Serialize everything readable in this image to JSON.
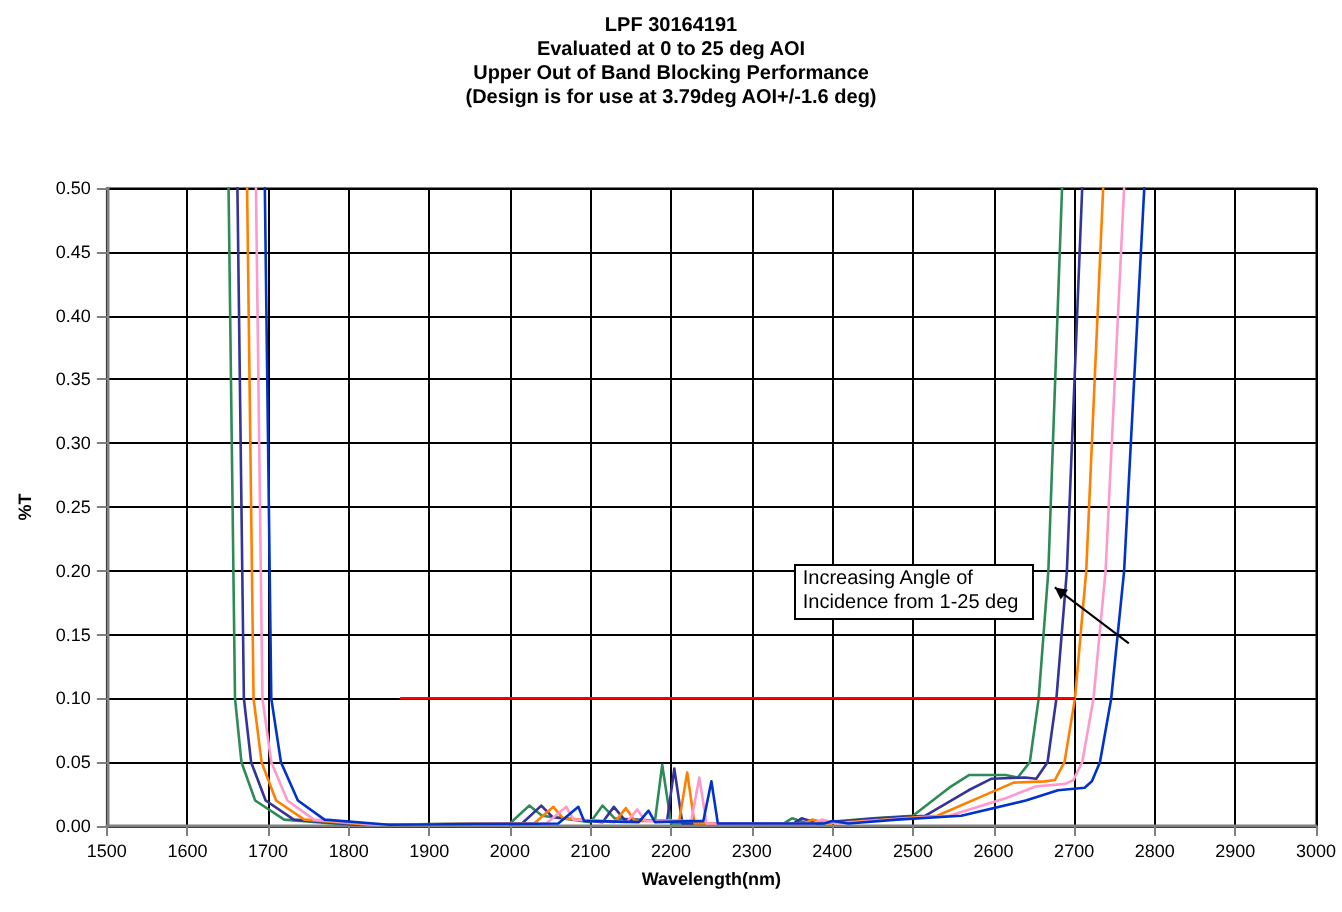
{
  "chart_data": {
    "type": "line",
    "title": "LPF 30164191",
    "subtitle": "Evaluated at 0 to 25 deg AOI\nUpper Out of Band Blocking Performance\n(Design is for use at 3.79deg AOI+/-1.6 deg)",
    "xlabel": "Wavelength(nm)",
    "ylabel": "%T",
    "xlim": [
      1500,
      3000
    ],
    "xticks": [
      1500,
      1600,
      1700,
      1800,
      1900,
      2000,
      2100,
      2200,
      2300,
      2400,
      2500,
      2600,
      2700,
      2800,
      2900,
      3000
    ],
    "ylim": [
      0,
      0.5
    ],
    "yticks": [
      {
        "value": 0,
        "label": "0.00"
      },
      {
        "value": 0.05,
        "label": "0.05"
      },
      {
        "value": 0.1,
        "label": "0.10"
      },
      {
        "value": 0.15,
        "label": "0.15"
      },
      {
        "value": 0.2,
        "label": "0.20"
      },
      {
        "value": 0.25,
        "label": "0.25"
      },
      {
        "value": 0.3,
        "label": "0.30"
      },
      {
        "value": 0.35,
        "label": "0.35"
      },
      {
        "value": 0.4,
        "label": "0.40"
      },
      {
        "value": 0.45,
        "label": "0.45"
      },
      {
        "value": 0.5,
        "label": "0.50"
      }
    ],
    "grid": true,
    "marker": "none",
    "line_style": "solid",
    "series": [
      {
        "color": "#2e8b57",
        "x": [
          1651,
          1659,
          1667,
          1684,
          1720,
          1800,
          2000,
          2024,
          2040,
          2100,
          2115,
          2130,
          2180,
          2189,
          2200,
          2340,
          2350,
          2370,
          2450,
          2500,
          2545,
          2570,
          2615,
          2630,
          2645,
          2656,
          2668,
          2685
        ],
        "values": [
          0.5,
          0.1,
          0.05,
          0.02,
          0.005,
          0.001,
          0.002,
          0.016,
          0.008,
          0.003,
          0.016,
          0.006,
          0.004,
          0.048,
          0.002,
          0.002,
          0.006,
          0.002,
          0.006,
          0.008,
          0.03,
          0.04,
          0.04,
          0.038,
          0.05,
          0.1,
          0.2,
          0.5
        ]
      },
      {
        "color": "#333399",
        "x": [
          1662,
          1670,
          1679,
          1697,
          1732,
          1812,
          2015,
          2039,
          2053,
          2115,
          2129,
          2142,
          2195,
          2204,
          2214,
          2352,
          2362,
          2382,
          2457,
          2515,
          2569,
          2597,
          2639,
          2653,
          2667,
          2678,
          2691,
          2710
        ],
        "values": [
          0.5,
          0.1,
          0.05,
          0.02,
          0.005,
          0.001,
          0.002,
          0.016,
          0.007,
          0.003,
          0.015,
          0.005,
          0.004,
          0.045,
          0.002,
          0.002,
          0.006,
          0.002,
          0.006,
          0.008,
          0.028,
          0.037,
          0.038,
          0.037,
          0.05,
          0.1,
          0.2,
          0.5
        ]
      },
      {
        "color": "#ff8000",
        "x": [
          1674,
          1682,
          1692,
          1710,
          1745,
          1825,
          2030,
          2054,
          2066,
          2130,
          2144,
          2155,
          2210,
          2220,
          2229,
          2365,
          2375,
          2395,
          2465,
          2530,
          2592,
          2625,
          2664,
          2676,
          2688,
          2701,
          2715,
          2736
        ],
        "values": [
          0.5,
          0.1,
          0.05,
          0.02,
          0.005,
          0.001,
          0.002,
          0.015,
          0.006,
          0.003,
          0.014,
          0.004,
          0.004,
          0.042,
          0.002,
          0.002,
          0.005,
          0.002,
          0.005,
          0.008,
          0.025,
          0.034,
          0.035,
          0.036,
          0.05,
          0.1,
          0.2,
          0.5
        ]
      },
      {
        "color": "#ff99cc",
        "x": [
          1685,
          1693,
          1704,
          1724,
          1757,
          1837,
          2045,
          2070,
          2079,
          2145,
          2158,
          2168,
          2225,
          2235,
          2244,
          2377,
          2387,
          2407,
          2472,
          2545,
          2616,
          2652,
          2689,
          2699,
          2710,
          2724,
          2739,
          2762
        ],
        "values": [
          0.5,
          0.1,
          0.05,
          0.02,
          0.005,
          0.001,
          0.002,
          0.015,
          0.005,
          0.003,
          0.013,
          0.004,
          0.004,
          0.038,
          0.002,
          0.002,
          0.005,
          0.002,
          0.005,
          0.008,
          0.022,
          0.031,
          0.033,
          0.036,
          0.05,
          0.1,
          0.2,
          0.5
        ]
      },
      {
        "color": "#0033cc",
        "x": [
          1696,
          1704,
          1716,
          1737,
          1770,
          1850,
          2060,
          2085,
          2092,
          2160,
          2172,
          2180,
          2240,
          2250,
          2258,
          2390,
          2400,
          2420,
          2480,
          2560,
          2640,
          2680,
          2713,
          2722,
          2732,
          2746,
          2762,
          2787
        ],
        "values": [
          0.5,
          0.1,
          0.05,
          0.02,
          0.005,
          0.001,
          0.002,
          0.015,
          0.004,
          0.003,
          0.012,
          0.003,
          0.004,
          0.035,
          0.002,
          0.002,
          0.004,
          0.002,
          0.005,
          0.008,
          0.02,
          0.028,
          0.03,
          0.035,
          0.05,
          0.1,
          0.2,
          0.5
        ]
      },
      {
        "color": "#ff0000",
        "x": [
          1865,
          2700
        ],
        "values": [
          0.1,
          0.1
        ]
      }
    ],
    "annotations": [
      {
        "text": "Increasing Angle of Incidence from 1-25 deg",
        "x": 2676,
        "y": 0.187
      }
    ]
  }
}
